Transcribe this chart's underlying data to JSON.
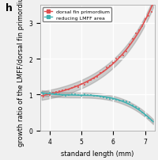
{
  "title": "",
  "panel_label": "h",
  "xlabel": "standard length (mm)",
  "ylabel": "growth ratio of the LMFF/dorsal fin primordium",
  "xlim": [
    3.7,
    7.3
  ],
  "ylim": [
    0,
    3.5
  ],
  "xticks": [
    4,
    5,
    6,
    7
  ],
  "yticks": [
    0,
    1,
    2,
    3
  ],
  "bg_color": "#f5f5f5",
  "grid_color": "#ffffff",
  "red_color": "#e05050",
  "cyan_color": "#40b0b0",
  "red_scatter": [
    [
      3.8,
      0.95
    ],
    [
      3.9,
      1.02
    ],
    [
      4.0,
      0.98
    ],
    [
      4.1,
      1.05
    ],
    [
      4.2,
      1.08
    ],
    [
      4.3,
      1.1
    ],
    [
      4.4,
      1.12
    ],
    [
      4.5,
      1.15
    ],
    [
      4.6,
      1.13
    ],
    [
      4.7,
      1.18
    ],
    [
      4.8,
      1.22
    ],
    [
      4.9,
      1.2
    ],
    [
      5.0,
      1.3
    ],
    [
      5.1,
      1.28
    ],
    [
      5.2,
      1.35
    ],
    [
      5.3,
      1.4
    ],
    [
      5.4,
      1.45
    ],
    [
      5.5,
      1.5
    ],
    [
      5.6,
      1.6
    ],
    [
      5.7,
      1.65
    ],
    [
      5.8,
      1.75
    ],
    [
      5.9,
      1.8
    ],
    [
      6.0,
      1.9
    ],
    [
      6.1,
      2.0
    ],
    [
      6.2,
      2.05
    ],
    [
      6.3,
      2.1
    ],
    [
      6.4,
      2.2
    ],
    [
      6.5,
      2.4
    ],
    [
      6.6,
      2.55
    ],
    [
      6.7,
      2.7
    ],
    [
      6.8,
      2.8
    ],
    [
      6.9,
      2.9
    ],
    [
      7.0,
      3.1
    ],
    [
      7.1,
      3.2
    ],
    [
      7.2,
      3.3
    ]
  ],
  "cyan_scatter": [
    [
      3.8,
      1.0
    ],
    [
      3.9,
      1.02
    ],
    [
      4.0,
      1.05
    ],
    [
      4.1,
      1.03
    ],
    [
      4.2,
      1.02
    ],
    [
      4.3,
      1.0
    ],
    [
      4.4,
      0.98
    ],
    [
      4.5,
      0.97
    ],
    [
      4.6,
      0.99
    ],
    [
      4.7,
      1.01
    ],
    [
      4.8,
      1.0
    ],
    [
      4.9,
      0.98
    ],
    [
      5.0,
      0.97
    ],
    [
      5.1,
      1.0
    ],
    [
      5.2,
      0.99
    ],
    [
      5.3,
      0.98
    ],
    [
      5.4,
      0.97
    ],
    [
      5.5,
      0.96
    ],
    [
      5.6,
      0.95
    ],
    [
      5.7,
      0.93
    ],
    [
      5.8,
      0.9
    ],
    [
      5.9,
      0.88
    ],
    [
      6.0,
      0.87
    ],
    [
      6.1,
      0.85
    ],
    [
      6.2,
      0.83
    ],
    [
      6.3,
      0.82
    ],
    [
      6.4,
      0.8
    ],
    [
      6.5,
      0.78
    ],
    [
      6.6,
      0.7
    ],
    [
      6.7,
      0.65
    ],
    [
      6.8,
      0.6
    ],
    [
      6.9,
      0.5
    ],
    [
      7.0,
      0.42
    ],
    [
      7.1,
      0.35
    ],
    [
      7.2,
      0.28
    ]
  ],
  "legend_labels": [
    "dorsal fin primordium",
    "reducing LMFF area"
  ],
  "font_size": 6.5,
  "label_fontsize": 6,
  "tick_fontsize": 5.5
}
